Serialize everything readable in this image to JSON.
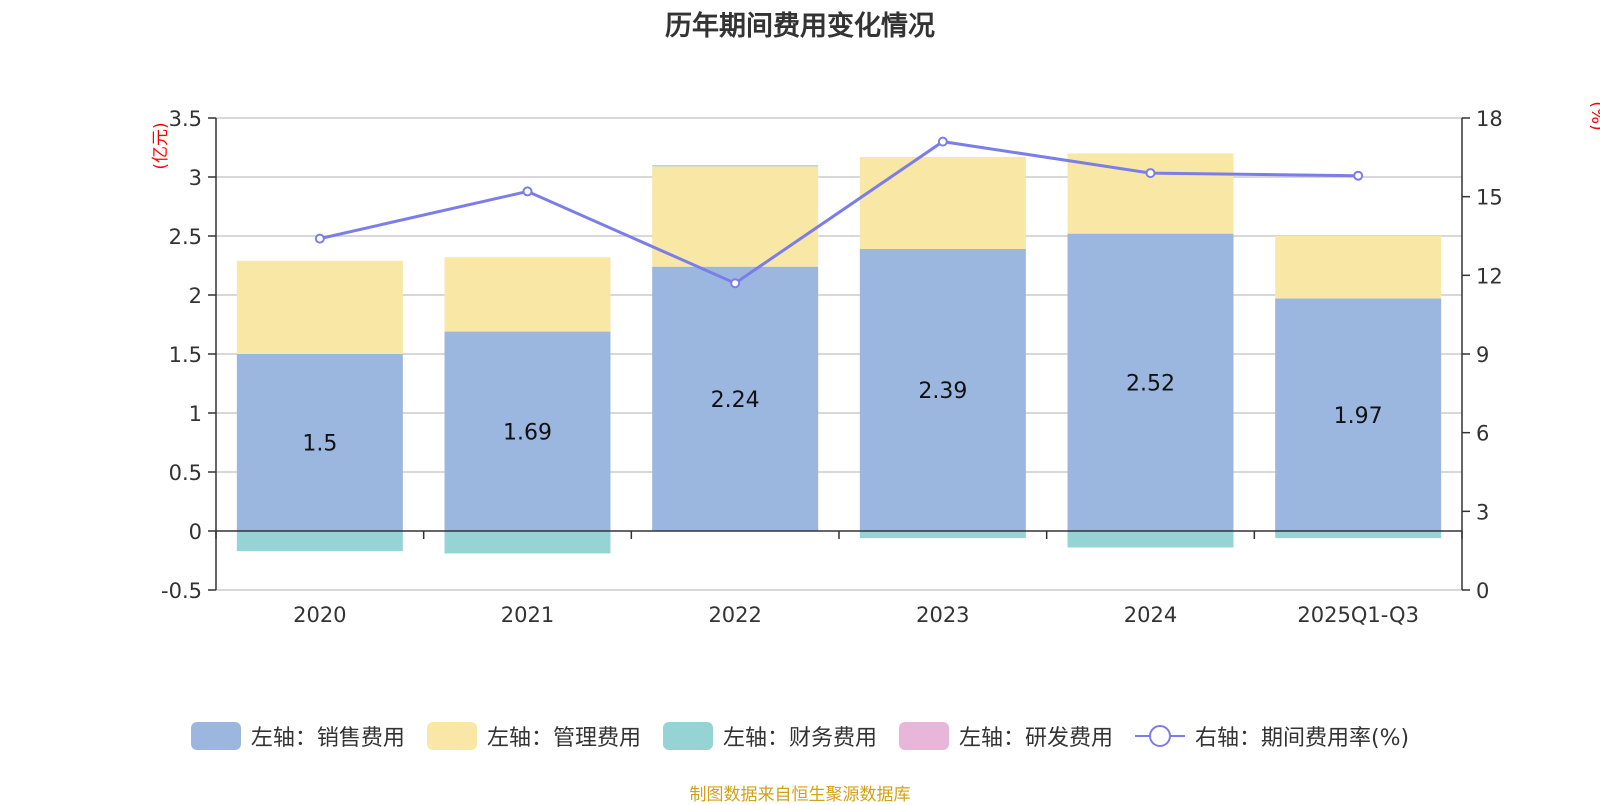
{
  "colors": {
    "sales": "#9bb7e0",
    "admin": "#f8e7a5",
    "finance": "#96d3d4",
    "rnd": "#e8b6d8",
    "ratio": "#7b7ee8",
    "unit": "#ff0000",
    "source": "#d4a017"
  },
  "chart_data": {
    "type": "bar",
    "title": "历年期间费用变化情况",
    "left_unit": "(亿元)",
    "right_unit": "(%)",
    "categories": [
      "2020",
      "2021",
      "2022",
      "2023",
      "2024",
      "2025Q1-Q3"
    ],
    "left_axis": {
      "min": -0.5,
      "max": 3.5,
      "step": 0.5,
      "ticks": [
        "-0.5",
        "0",
        "0.5",
        "1",
        "1.5",
        "2",
        "2.5",
        "3",
        "3.5"
      ]
    },
    "right_axis": {
      "min": 0,
      "max": 18,
      "step": 3,
      "ticks": [
        "0",
        "3",
        "6",
        "9",
        "12",
        "15",
        "18"
      ]
    },
    "series": [
      {
        "key": "sales",
        "name": "左轴：销售费用",
        "type": "bar",
        "stack": true,
        "values": [
          1.5,
          1.69,
          2.24,
          2.39,
          2.52,
          1.97
        ],
        "labels": [
          "1.5",
          "1.69",
          "2.24",
          "2.39",
          "2.52",
          "1.97"
        ]
      },
      {
        "key": "admin",
        "name": "左轴：管理费用",
        "type": "bar",
        "stack": true,
        "values": [
          0.79,
          0.63,
          0.85,
          0.78,
          0.68,
          0.53
        ]
      },
      {
        "key": "finance",
        "name": "左轴：财务费用",
        "type": "bar",
        "stack": true,
        "values": [
          -0.17,
          -0.19,
          0.01,
          -0.06,
          -0.14,
          -0.06
        ]
      },
      {
        "key": "rnd",
        "name": "左轴：研发费用",
        "type": "bar",
        "stack": true,
        "values": [
          0,
          0,
          0,
          0,
          0,
          0
        ]
      },
      {
        "key": "ratio",
        "name": "右轴：期间费用率(%)",
        "type": "line",
        "axis": "right",
        "values": [
          13.4,
          15.2,
          11.7,
          17.1,
          15.9,
          15.8
        ]
      }
    ]
  },
  "source": "制图数据来自恒生聚源数据库"
}
